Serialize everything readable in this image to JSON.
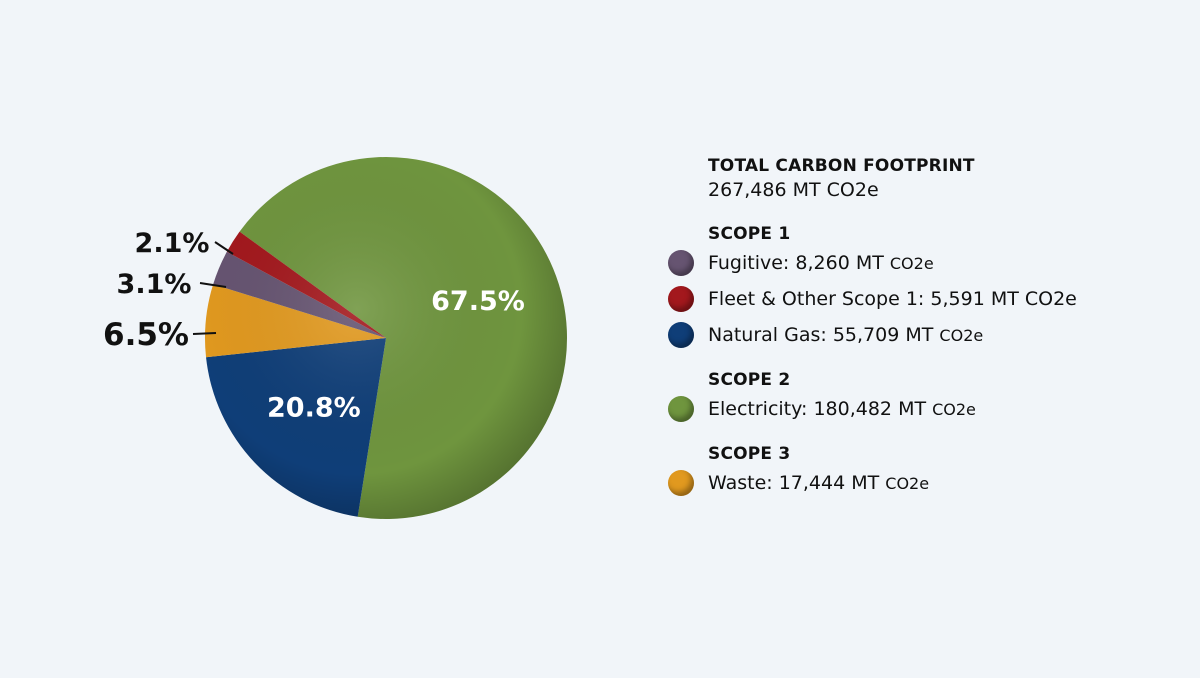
{
  "chart_data": {
    "type": "pie",
    "title": "TOTAL CARBON FOOTPRINT",
    "total": "267,486 MT CO2e",
    "slices": [
      {
        "label": "Electricity",
        "value": 67.5,
        "display": "67.5%",
        "color": "#6f953e",
        "label_pos": "inside"
      },
      {
        "label": "Natural Gas",
        "value": 20.8,
        "display": "20.8%",
        "color": "#0f3e78",
        "label_pos": "inside"
      },
      {
        "label": "Waste",
        "value": 6.5,
        "display": "6.5%",
        "color": "#e1991f",
        "label_pos": "outside"
      },
      {
        "label": "Fugitive",
        "value": 3.1,
        "display": "3.1%",
        "color": "#665471",
        "label_pos": "outside"
      },
      {
        "label": "Fleet & Other Scope 1",
        "value": 2.1,
        "display": "2.1%",
        "color": "#a3181d",
        "label_pos": "outside"
      }
    ]
  },
  "legend": {
    "total_heading": "TOTAL CARBON FOOTPRINT",
    "total_value": "267,486 MT CO2e",
    "groups": [
      {
        "heading": "SCOPE 1",
        "items": [
          {
            "name": "Fugitive:",
            "amount": "8,260 MT",
            "unit": "CO2e",
            "color": "#665471"
          },
          {
            "name": "Fleet & Other Scope 1:",
            "amount": "5,591 MT",
            "unit": "CO2e",
            "color": "#a3181d"
          },
          {
            "name": "Natural Gas:",
            "amount": "55,709 MT",
            "unit": "CO2e",
            "color": "#0f3e78"
          }
        ]
      },
      {
        "heading": "SCOPE 2",
        "items": [
          {
            "name": "Electricity:",
            "amount": "180,482 MT",
            "unit": "CO2e",
            "color": "#6f953e"
          }
        ]
      },
      {
        "heading": "SCOPE 3",
        "items": [
          {
            "name": "Waste:",
            "amount": "17,444 MT",
            "unit": "CO2e",
            "color": "#e1991f"
          }
        ]
      }
    ]
  }
}
